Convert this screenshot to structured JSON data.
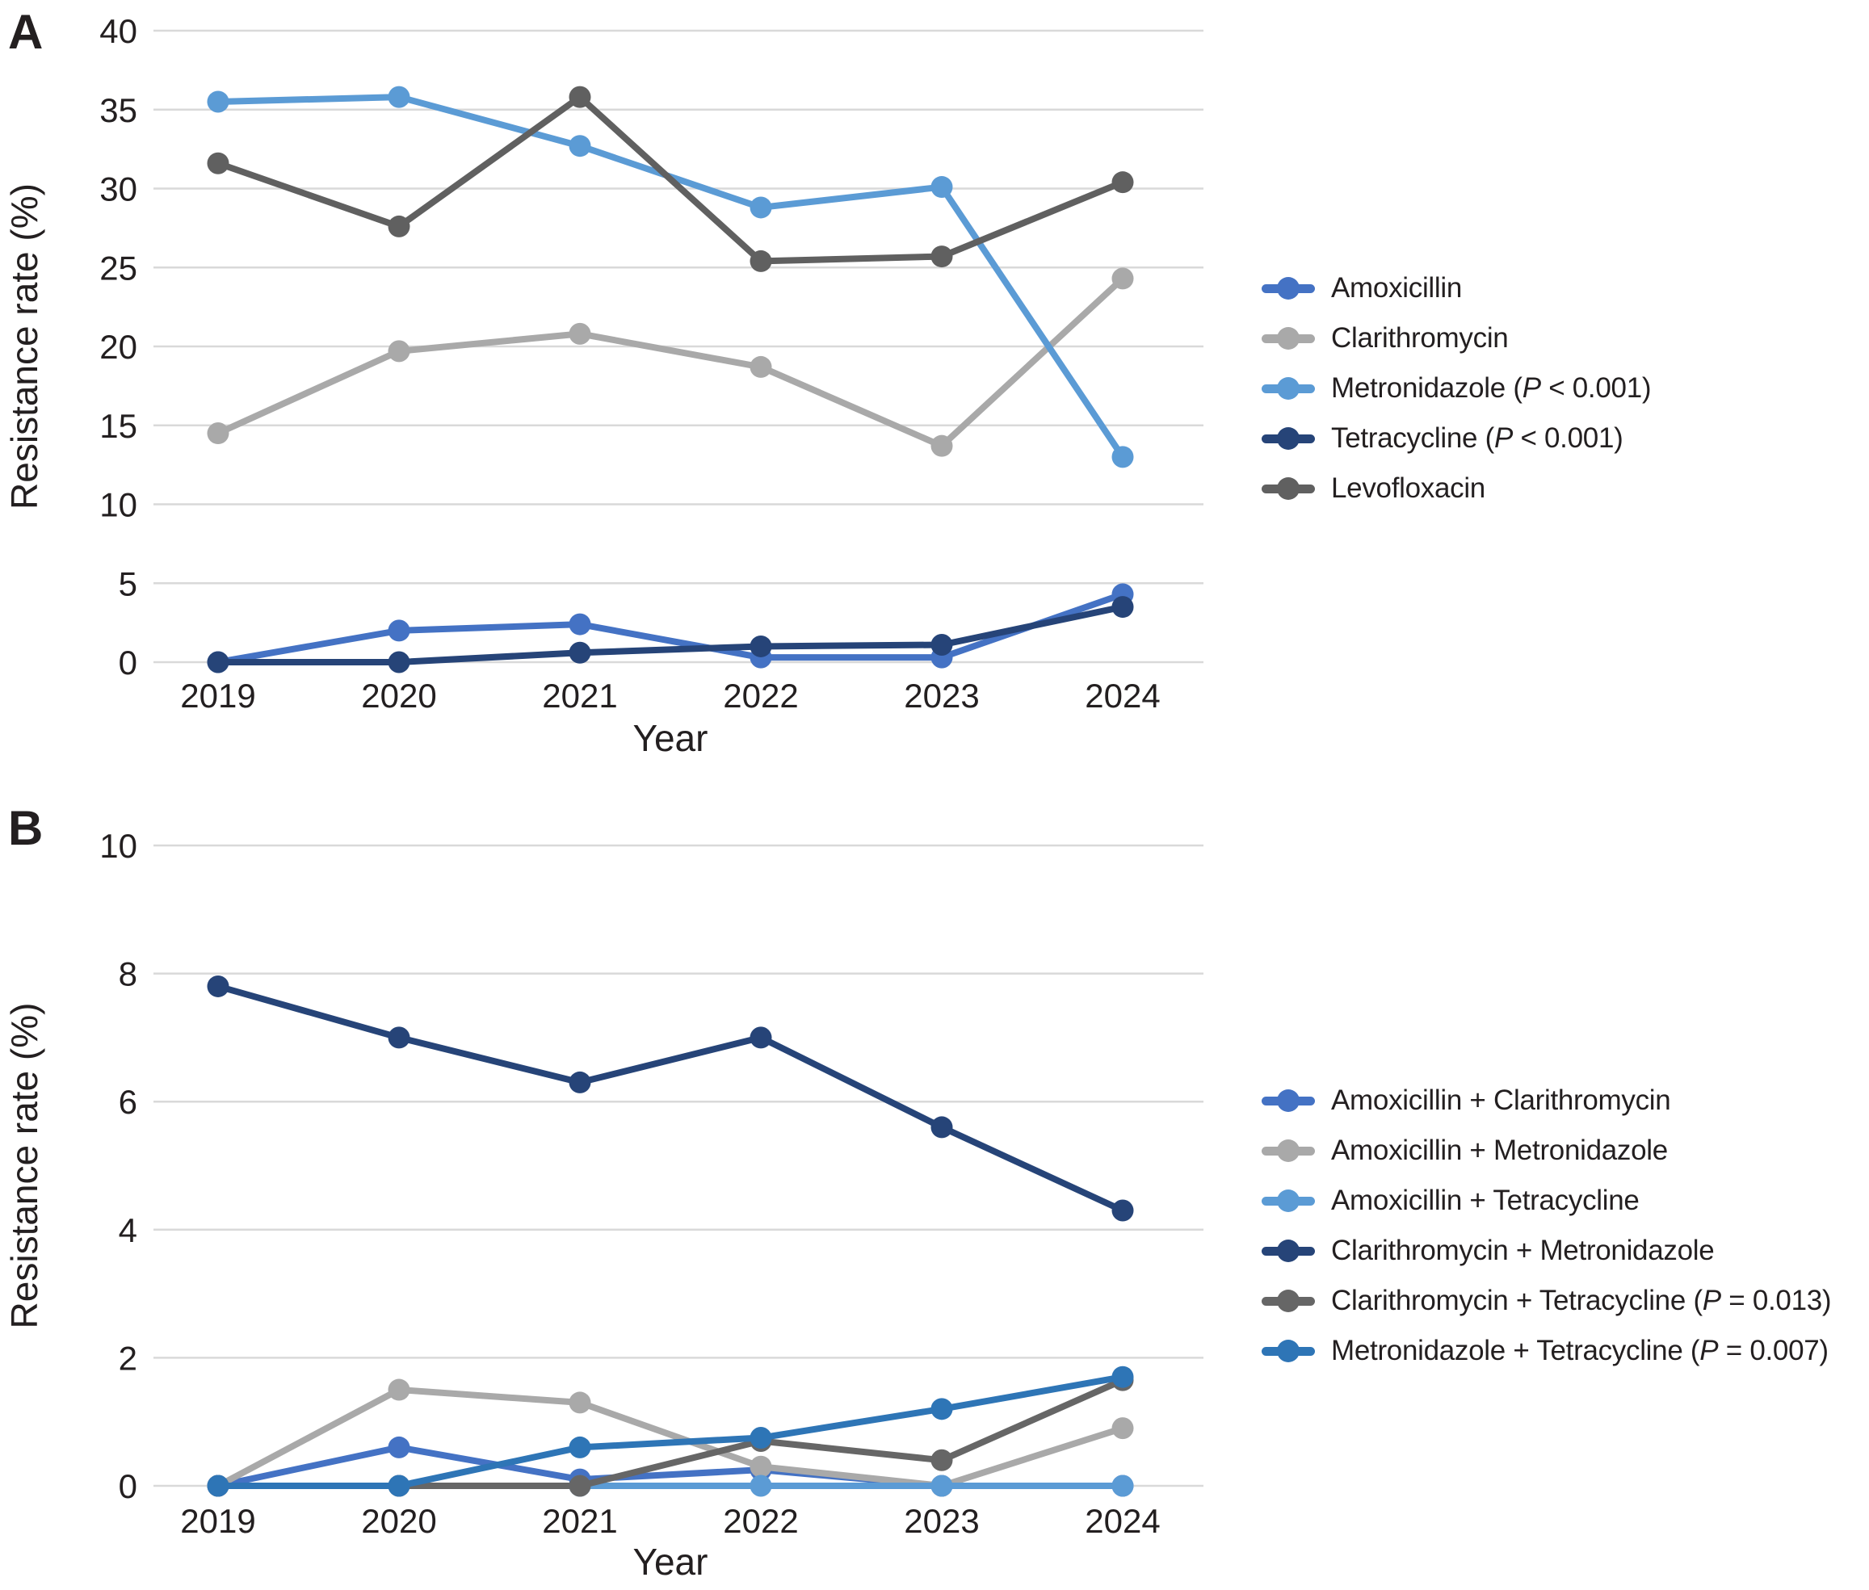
{
  "figure": {
    "panels": [
      {
        "label": "A"
      },
      {
        "label": "B"
      }
    ]
  },
  "style": {
    "gridline_color": "#D9D9D9",
    "text_color": "#231F20",
    "background": "#ffffff"
  },
  "chart_data": [
    {
      "type": "line",
      "panel": "A",
      "title": "",
      "xlabel": "Year",
      "ylabel": "Resistance rate (%)",
      "categories": [
        "2019",
        "2020",
        "2021",
        "2022",
        "2023",
        "2024"
      ],
      "ylim": [
        0,
        40
      ],
      "yticks": [
        0,
        5,
        10,
        15,
        20,
        25,
        30,
        35,
        40
      ],
      "grid": true,
      "legend_position": "right",
      "series": [
        {
          "name": "Amoxicillin",
          "p_value": null,
          "color": "#4472C4",
          "values": [
            0,
            2.0,
            2.4,
            0.3,
            0.3,
            4.3
          ]
        },
        {
          "name": "Clarithromycin",
          "p_value": null,
          "color": "#A9A9A9",
          "values": [
            14.5,
            19.7,
            20.8,
            18.7,
            13.7,
            24.3
          ]
        },
        {
          "name": "Metronidazole",
          "p_value": "< 0.001",
          "color": "#5B9BD5",
          "values": [
            35.5,
            35.8,
            32.7,
            28.8,
            30.1,
            13.0
          ]
        },
        {
          "name": "Tetracycline",
          "p_value": "< 0.001",
          "color": "#264478",
          "values": [
            0,
            0,
            0.6,
            1.0,
            1.1,
            3.5
          ]
        },
        {
          "name": "Levofloxacin",
          "p_value": null,
          "color": "#606060",
          "values": [
            31.6,
            27.6,
            35.8,
            25.4,
            25.7,
            30.4
          ]
        }
      ]
    },
    {
      "type": "line",
      "panel": "B",
      "title": "",
      "xlabel": "Year",
      "ylabel": "Resistance rate (%)",
      "categories": [
        "2019",
        "2020",
        "2021",
        "2022",
        "2023",
        "2024"
      ],
      "ylim": [
        0,
        10
      ],
      "yticks": [
        0,
        2,
        4,
        6,
        8,
        10
      ],
      "grid": true,
      "legend_position": "right",
      "series": [
        {
          "name": "Amoxicillin + Clarithromycin",
          "p_value": null,
          "color": "#4472C4",
          "values": [
            0,
            0.6,
            0.1,
            0.25,
            0,
            0
          ]
        },
        {
          "name": "Amoxicillin + Metronidazole",
          "p_value": null,
          "color": "#A9A9A9",
          "values": [
            0,
            1.5,
            1.3,
            0.3,
            0,
            0.9
          ]
        },
        {
          "name": "Amoxicillin + Tetracycline",
          "p_value": null,
          "color": "#5B9BD5",
          "values": [
            0,
            0,
            0,
            0,
            0,
            0
          ]
        },
        {
          "name": "Clarithromycin + Metronidazole",
          "p_value": null,
          "color": "#264478",
          "values": [
            7.8,
            7.0,
            6.3,
            7.0,
            5.6,
            4.3
          ]
        },
        {
          "name": "Clarithromycin + Tetracycline",
          "p_value": "= 0.013",
          "color": "#666666",
          "values": [
            0,
            0,
            0,
            0.7,
            0.4,
            1.65
          ]
        },
        {
          "name": "Metronidazole + Tetracycline",
          "p_value": "= 0.007",
          "color": "#2E75B6",
          "values": [
            0,
            0,
            0.6,
            0.75,
            1.2,
            1.7
          ]
        }
      ]
    }
  ]
}
